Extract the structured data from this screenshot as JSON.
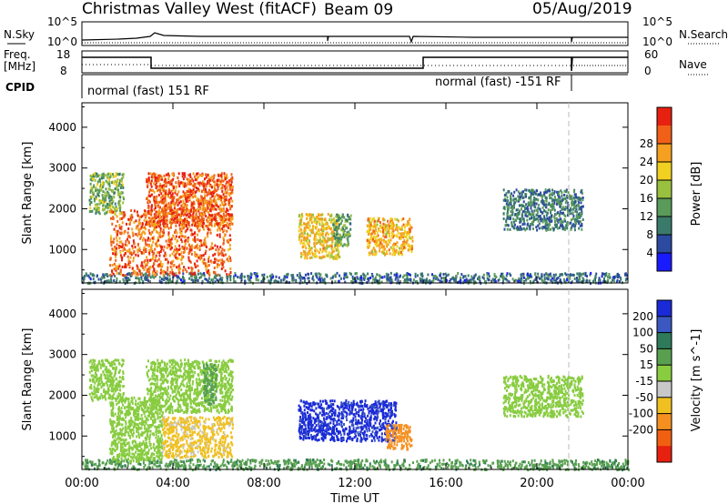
{
  "header": {
    "title": "Christmas Valley West (fitACF)",
    "beam": "Beam 09",
    "date": "05/Aug/2019"
  },
  "summary_panels": {
    "nsky": {
      "label": "N.Sky",
      "ticks": [
        "10^5",
        "10^0"
      ]
    },
    "nsearch": {
      "label": "N.Search",
      "ticks": [
        "10^5",
        "10^0"
      ]
    },
    "freq": {
      "label_line1": "Freq.",
      "label_line2": "[MHz]",
      "ticks": [
        "18",
        "8"
      ]
    },
    "nave": {
      "label": "Nave",
      "ticks": [
        "60",
        "0"
      ]
    },
    "cpid": {
      "label": "CPID",
      "modes": [
        "normal (fast) 151 RF",
        "normal (fast) -151 RF"
      ]
    }
  },
  "chart_data": [
    {
      "type": "heatmap",
      "title": "",
      "xlabel": "Time UT",
      "ylabel": "Slant Range [km]",
      "x_ticks": [
        "00:00",
        "04:00",
        "08:00",
        "12:00",
        "16:00",
        "20:00",
        "00:00"
      ],
      "y_ticks": [
        "1000",
        "2000",
        "3000",
        "4000"
      ],
      "ylim": [
        180,
        4600
      ],
      "colorbar": {
        "label": "Power [dB]",
        "ticks": [
          "4",
          "8",
          "12",
          "16",
          "20",
          "24",
          "28"
        ],
        "colors": [
          "#1a1aff",
          "#2b4aa0",
          "#3a7a6a",
          "#5a9a5a",
          "#9ac040",
          "#f0d020",
          "#f5a020",
          "#f06018",
          "#e82010"
        ]
      },
      "echo_regions": [
        {
          "t_start_h": 0.0,
          "t_end_h": 24.0,
          "range_min_km": 200,
          "range_max_km": 450,
          "value": 8
        },
        {
          "t_start_h": 0.3,
          "t_end_h": 1.8,
          "range_min_km": 1900,
          "range_max_km": 2900,
          "value": 14
        },
        {
          "t_start_h": 1.2,
          "t_end_h": 6.5,
          "range_min_km": 400,
          "range_max_km": 2000,
          "value": 26
        },
        {
          "t_start_h": 2.8,
          "t_end_h": 6.6,
          "range_min_km": 1600,
          "range_max_km": 2900,
          "value": 27
        },
        {
          "t_start_h": 9.5,
          "t_end_h": 11.3,
          "range_min_km": 800,
          "range_max_km": 1900,
          "value": 20
        },
        {
          "t_start_h": 11.0,
          "t_end_h": 11.8,
          "range_min_km": 1100,
          "range_max_km": 1900,
          "value": 12
        },
        {
          "t_start_h": 12.5,
          "t_end_h": 14.5,
          "range_min_km": 900,
          "range_max_km": 1800,
          "value": 22
        },
        {
          "t_start_h": 18.5,
          "t_end_h": 22.0,
          "range_min_km": 1500,
          "range_max_km": 2500,
          "value": 9
        }
      ]
    },
    {
      "type": "heatmap",
      "title": "",
      "xlabel": "Time UT",
      "ylabel": "Slant Range [km]",
      "x_ticks": [
        "00:00",
        "04:00",
        "08:00",
        "12:00",
        "16:00",
        "20:00",
        "00:00"
      ],
      "y_ticks": [
        "1000",
        "2000",
        "3000",
        "4000"
      ],
      "ylim": [
        180,
        4600
      ],
      "colorbar": {
        "label": "Velocity [m s^-1]",
        "ticks": [
          "200",
          "100",
          "50",
          "15",
          "-15",
          "-50",
          "-100",
          "-200"
        ],
        "colors": [
          "#1a2ad8",
          "#3a58c0",
          "#2e7a5a",
          "#58a050",
          "#88cc40",
          "#c8c8c8",
          "#f0c020",
          "#f59020",
          "#f06010",
          "#e82010"
        ]
      },
      "echo_regions": [
        {
          "t_start_h": 0.0,
          "t_end_h": 24.0,
          "range_min_km": 200,
          "range_max_km": 450,
          "value": 40
        },
        {
          "t_start_h": 0.3,
          "t_end_h": 1.8,
          "range_min_km": 1900,
          "range_max_km": 2900,
          "value": 0
        },
        {
          "t_start_h": 1.2,
          "t_end_h": 3.5,
          "range_min_km": 400,
          "range_max_km": 2000,
          "value": 0
        },
        {
          "t_start_h": 3.5,
          "t_end_h": 6.6,
          "range_min_km": 500,
          "range_max_km": 1500,
          "value": -60
        },
        {
          "t_start_h": 2.8,
          "t_end_h": 6.6,
          "range_min_km": 1600,
          "range_max_km": 2900,
          "value": 0
        },
        {
          "t_start_h": 5.3,
          "t_end_h": 5.9,
          "range_min_km": 1800,
          "range_max_km": 2800,
          "value": 30
        },
        {
          "t_start_h": 9.5,
          "t_end_h": 13.8,
          "range_min_km": 900,
          "range_max_km": 1900,
          "value": 220
        },
        {
          "t_start_h": 13.3,
          "t_end_h": 14.5,
          "range_min_km": 700,
          "range_max_km": 1300,
          "value": -150
        },
        {
          "t_start_h": 18.5,
          "t_end_h": 22.0,
          "range_min_km": 1500,
          "range_max_km": 2500,
          "value": 0
        }
      ]
    }
  ]
}
